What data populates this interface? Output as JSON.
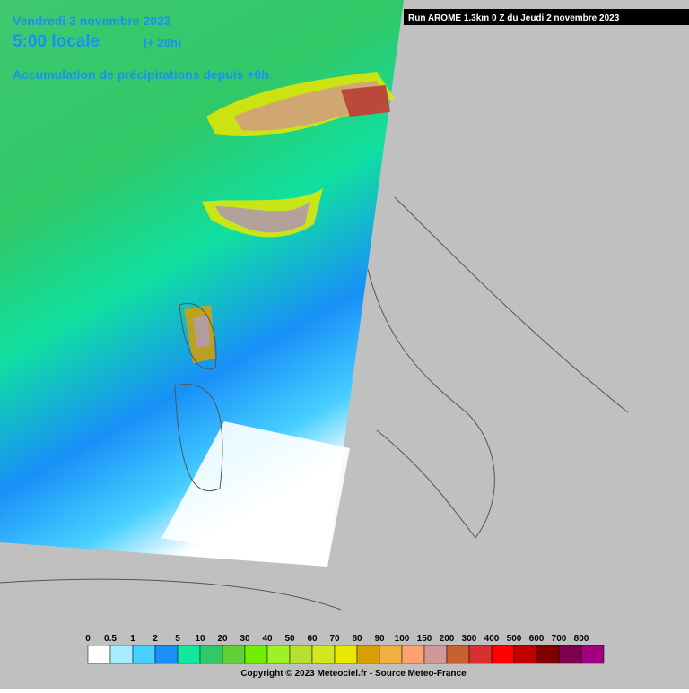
{
  "header": {
    "date": "Vendredi 3 novembre 2023",
    "time": "5:00 locale",
    "lead": "(+ 28h)",
    "product": "Accumulation de précipitations depuis +0h",
    "run": "Run AROME 1.3km 0 Z du Jeudi 2 novembre 2023"
  },
  "legend": {
    "items": [
      {
        "label": "0",
        "color": "#ffffff"
      },
      {
        "label": "0.5",
        "color": "#a8ecff"
      },
      {
        "label": "1",
        "color": "#48d0ff"
      },
      {
        "label": "2",
        "color": "#1890f8"
      },
      {
        "label": "5",
        "color": "#10e8a0"
      },
      {
        "label": "10",
        "color": "#30c868"
      },
      {
        "label": "20",
        "color": "#60d038"
      },
      {
        "label": "30",
        "color": "#70f000"
      },
      {
        "label": "40",
        "color": "#a0f028"
      },
      {
        "label": "50",
        "color": "#b8e030"
      },
      {
        "label": "60",
        "color": "#d0e820"
      },
      {
        "label": "70",
        "color": "#e8e800"
      },
      {
        "label": "80",
        "color": "#d8a000"
      },
      {
        "label": "90",
        "color": "#f0b040"
      },
      {
        "label": "100",
        "color": "#ffa070"
      },
      {
        "label": "150",
        "color": "#d09898"
      },
      {
        "label": "200",
        "color": "#c86030"
      },
      {
        "label": "300",
        "color": "#d83030"
      },
      {
        "label": "400",
        "color": "#ff0000"
      },
      {
        "label": "500",
        "color": "#c00000"
      },
      {
        "label": "600",
        "color": "#800000"
      },
      {
        "label": "700",
        "color": "#800050"
      },
      {
        "label": "800",
        "color": "#a00080"
      }
    ]
  },
  "footer": {
    "copyright": "Copyright © 2023 Meteociel.fr - Source Meteo-France"
  }
}
